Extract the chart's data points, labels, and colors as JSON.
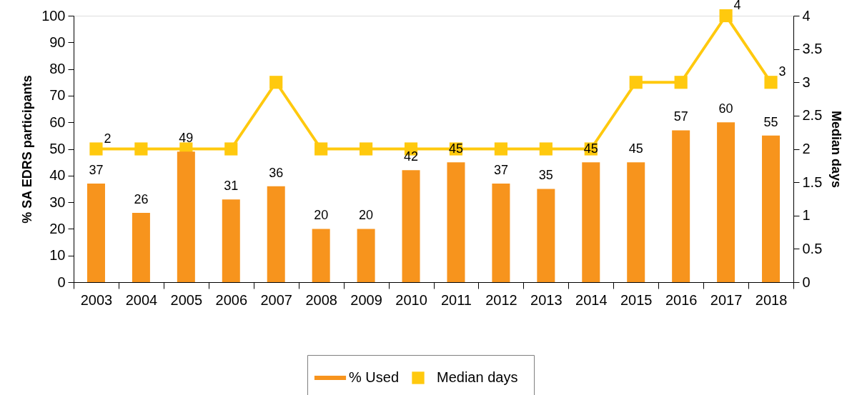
{
  "chart_data": {
    "type": "bar",
    "ylabel": "% SA EDRS participants",
    "y2label": "Median days",
    "categories": [
      "2003",
      "2004",
      "2005",
      "2006",
      "2007",
      "2008",
      "2009",
      "2010",
      "2011",
      "2012",
      "2013",
      "2014",
      "2015",
      "2016",
      "2017",
      "2018"
    ],
    "series": [
      {
        "name": "% Used",
        "color": "#f7941d",
        "values": [
          37,
          26,
          49,
          31,
          36,
          20,
          20,
          42,
          45,
          37,
          35,
          45,
          45,
          57,
          60,
          55
        ],
        "value_labels": [
          "37",
          "26",
          "49",
          "31",
          "36",
          "20",
          "20",
          "42",
          "45",
          "37",
          "35",
          "45",
          "45",
          "57",
          "60",
          "55"
        ]
      },
      {
        "name": "Median days",
        "type": "line",
        "axis": "y2",
        "color": "#ffc90e",
        "marker": "square",
        "line_style": "solid",
        "values": [
          2,
          2,
          2,
          2,
          3,
          2,
          2,
          2,
          2,
          2,
          2,
          2,
          3,
          3,
          4,
          3
        ],
        "value_labels": [
          "2",
          null,
          null,
          null,
          null,
          null,
          null,
          null,
          null,
          null,
          null,
          null,
          null,
          null,
          "4",
          "3"
        ]
      }
    ],
    "ylim": [
      0,
      100
    ],
    "yticks": [
      0,
      10,
      20,
      30,
      40,
      50,
      60,
      70,
      80,
      90,
      100
    ],
    "y2lim": [
      0,
      4
    ],
    "y2ticks": [
      0,
      0.5,
      1,
      1.5,
      2,
      2.5,
      3,
      3.5,
      4
    ],
    "grid": false,
    "legend": "bottom"
  }
}
